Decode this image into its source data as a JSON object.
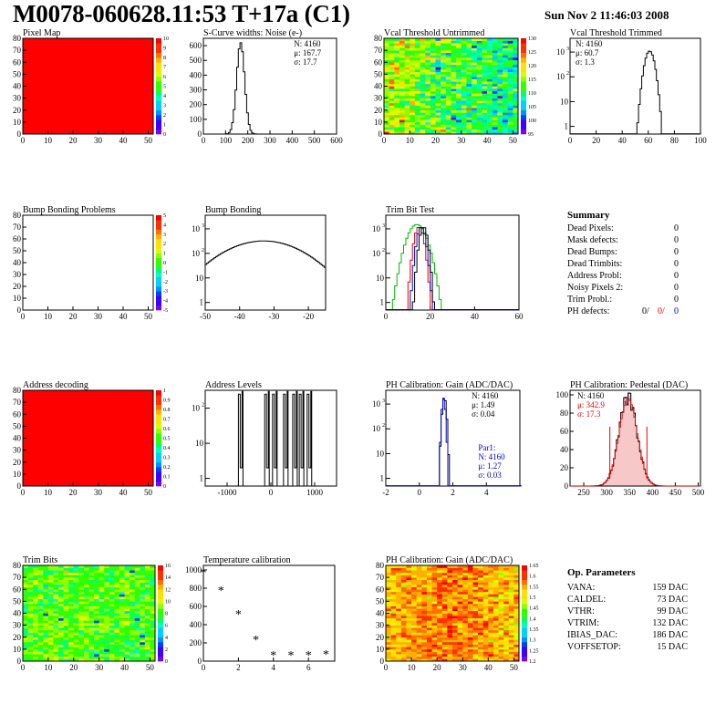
{
  "header": {
    "title": "M0078-060628.11:53 T+17a (C1)",
    "date": "Sun Nov  2 11:46:03 2008"
  },
  "colors": {
    "hist_line": "#000000",
    "blue": "#0000cc",
    "red": "#ee0000",
    "green": "#00bb00",
    "map_red": "#ff0000"
  },
  "chart_data": [
    {
      "id": "pixel-map",
      "type": "heatmap",
      "title": "Pixel Map",
      "fill": "uniform-red",
      "xlim": [
        0,
        52
      ],
      "ylim": [
        0,
        80
      ],
      "xticks": [
        "0",
        "10",
        "20",
        "30",
        "40",
        "50"
      ],
      "yticks": [
        "0",
        "10",
        "20",
        "30",
        "40",
        "50",
        "60",
        "70",
        "80"
      ],
      "zticks": [
        "0",
        "1",
        "2",
        "3",
        "4",
        "5",
        "6",
        "7",
        "8",
        "9",
        "10"
      ]
    },
    {
      "id": "scurve",
      "type": "histogram",
      "title": "S-Curve widths: Noise (e-)",
      "xlim": [
        0,
        600
      ],
      "ylim": [
        0,
        650
      ],
      "xticks": [
        "0",
        "100",
        "200",
        "300",
        "400",
        "500",
        "600"
      ],
      "yticks": [
        "0",
        "100",
        "200",
        "300",
        "400",
        "500",
        "600"
      ],
      "stats": {
        "N": "4160",
        "mean": "167.7",
        "sigma": "17.7"
      },
      "peak": {
        "mean": 168,
        "sigma": 18,
        "height": 620
      }
    },
    {
      "id": "vcal-untrimmed",
      "type": "heatmap",
      "title": "Vcal Threshold Untrimmed",
      "fill": "noisy-green-gradient",
      "xlim": [
        0,
        52
      ],
      "ylim": [
        0,
        80
      ],
      "xticks": [
        "0",
        "10",
        "20",
        "30",
        "40",
        "50"
      ],
      "yticks": [
        "0",
        "10",
        "20",
        "30",
        "40",
        "50",
        "60",
        "70",
        "80"
      ],
      "zticks": [
        "95",
        "100",
        "105",
        "110",
        "115",
        "120",
        "125",
        "130"
      ]
    },
    {
      "id": "vcal-trimmed",
      "type": "histogram",
      "title": "Vcal Threshold Trimmed",
      "log": true,
      "xlim": [
        0,
        100
      ],
      "xticks": [
        "0",
        "20",
        "40",
        "60",
        "80",
        "100"
      ],
      "yticks": [
        "1",
        "10",
        "10^2",
        "10^3"
      ],
      "stats": {
        "N": "4160",
        "mean": "60.7",
        "sigma": "1.3"
      },
      "peak": {
        "mean": 61,
        "sigma": 2.5,
        "height": 1100
      }
    },
    {
      "id": "bump-problems",
      "type": "heatmap",
      "title": "Bump Bonding Problems",
      "fill": "empty",
      "xlim": [
        0,
        52
      ],
      "ylim": [
        0,
        80
      ],
      "xticks": [
        "0",
        "10",
        "20",
        "30",
        "40",
        "50"
      ],
      "yticks": [
        "0",
        "10",
        "20",
        "30",
        "40",
        "50",
        "60",
        "70",
        "80"
      ],
      "zticks": [
        "-5",
        "-4",
        "-3",
        "-2",
        "-1",
        "0",
        "1",
        "2",
        "3",
        "4",
        "5"
      ]
    },
    {
      "id": "bump-bonding",
      "type": "histogram",
      "title": "Bump Bonding",
      "log": true,
      "xlim": [
        -50,
        -15
      ],
      "xticks": [
        "-50",
        "-40",
        "-30",
        "-20"
      ],
      "yticks": [
        "1",
        "10",
        "10^2",
        "10^3"
      ],
      "peak": {
        "mean": -33,
        "sigma": 8,
        "height": 320
      }
    },
    {
      "id": "trim-bit-test",
      "type": "histogram",
      "title": "Trim Bit Test",
      "log": true,
      "xlim": [
        0,
        60
      ],
      "xticks": [
        "0",
        "20",
        "40",
        "60"
      ],
      "yticks": [
        "1",
        "10",
        "10^2",
        "10^3"
      ],
      "series": [
        {
          "color": "green",
          "mean": 14,
          "sigma": 2.8,
          "height": 1500
        },
        {
          "color": "red",
          "mean": 15,
          "sigma": 1.4,
          "height": 1200
        },
        {
          "color": "blue",
          "mean": 16,
          "sigma": 1.3,
          "height": 1200
        },
        {
          "color": "black",
          "mean": 17,
          "sigma": 1.2,
          "height": 1200
        }
      ]
    },
    {
      "id": "address-decoding",
      "type": "heatmap",
      "title": "Address decoding",
      "fill": "uniform-red",
      "xlim": [
        0,
        52
      ],
      "ylim": [
        0,
        80
      ],
      "xticks": [
        "0",
        "10",
        "20",
        "30",
        "40",
        "50"
      ],
      "yticks": [
        "0",
        "10",
        "20",
        "30",
        "40",
        "50",
        "60",
        "70",
        "80"
      ],
      "zticks": [
        "0",
        "0.1",
        "0.2",
        "0.3",
        "0.4",
        "0.5",
        "0.6",
        "0.7",
        "0.8",
        "0.9",
        "1"
      ]
    },
    {
      "id": "address-levels",
      "type": "histogram",
      "title": "Address Levels",
      "log": true,
      "xlim": [
        -1500,
        1500
      ],
      "xticks": [
        "-1000",
        "0",
        "1000"
      ],
      "yticks": [
        "1",
        "10",
        "10^2"
      ],
      "spikes": [
        -700,
        -100,
        80,
        330,
        540,
        690,
        870
      ]
    },
    {
      "id": "ph-gain",
      "type": "histogram",
      "title": "PH Calibration: Gain (ADC/DAC)",
      "log": true,
      "xlim": [
        -2,
        6
      ],
      "xticks": [
        "-2",
        "0",
        "2",
        "4"
      ],
      "yticks": [
        "1",
        "10",
        "10^2",
        "10^3"
      ],
      "stats": {
        "N": "4160",
        "mean": "1.49",
        "sigma": "0.04"
      },
      "fit": {
        "label": "Par1:",
        "N": "4160",
        "mean": "1.27",
        "sigma": "0.03"
      },
      "peak": {
        "mean": 1.49,
        "sigma": 0.08,
        "height": 1800
      }
    },
    {
      "id": "ph-pedestal",
      "type": "histogram",
      "title": "PH Calibration: Pedestal (DAC)",
      "xlim": [
        220,
        505
      ],
      "ylim": [
        0,
        105
      ],
      "xticks": [
        "250",
        "300",
        "350",
        "400",
        "450",
        "500"
      ],
      "yticks": [
        "0",
        "20",
        "40",
        "60",
        "80",
        "100"
      ],
      "stats": {
        "N": "4160",
        "mean": "342.9",
        "sigma": "17.3"
      },
      "peak": {
        "mean": 347,
        "sigma": 20,
        "height": 96
      },
      "markers": [
        307,
        388
      ]
    },
    {
      "id": "trim-bits",
      "type": "heatmap",
      "title": "Trim Bits",
      "fill": "noisy-green",
      "xlim": [
        0,
        52
      ],
      "ylim": [
        0,
        80
      ],
      "xticks": [
        "0",
        "10",
        "20",
        "30",
        "40",
        "50"
      ],
      "yticks": [
        "0",
        "10",
        "20",
        "30",
        "40",
        "50",
        "60",
        "70",
        "80"
      ],
      "zticks": [
        "0",
        "2",
        "4",
        "6",
        "8",
        "10",
        "12",
        "14",
        "16"
      ]
    },
    {
      "id": "temperature",
      "type": "scatter",
      "title": "Temperature calibration",
      "xlim": [
        0,
        7.5
      ],
      "ylim": [
        0,
        1050
      ],
      "xticks": [
        "0",
        "2",
        "4",
        "6"
      ],
      "yticks": [
        "0",
        "200",
        "400",
        "600",
        "800",
        "1000"
      ],
      "points": [
        [
          0,
          975
        ],
        [
          1,
          780
        ],
        [
          2,
          520
        ],
        [
          3,
          240
        ],
        [
          4,
          70
        ],
        [
          5,
          70
        ],
        [
          6,
          70
        ],
        [
          7,
          80
        ]
      ]
    },
    {
      "id": "ph-gain-map",
      "type": "heatmap",
      "title": "PH Calibration: Gain (ADC/DAC)",
      "fill": "noisy-orange",
      "xlim": [
        0,
        52
      ],
      "ylim": [
        0,
        80
      ],
      "xticks": [
        "0",
        "10",
        "20",
        "30",
        "40",
        "50"
      ],
      "yticks": [
        "0",
        "10",
        "20",
        "30",
        "40",
        "50",
        "60",
        "70",
        "80"
      ],
      "zticks": [
        "1.2",
        "1.25",
        "1.3",
        "1.35",
        "1.4",
        "1.45",
        "1.5",
        "1.55",
        "1.6",
        "1.65"
      ]
    }
  ],
  "summary": {
    "heading": "Summary",
    "rows": [
      {
        "label": "Dead Pixels:",
        "value": "0"
      },
      {
        "label": "Mask defects:",
        "value": "0"
      },
      {
        "label": "Dead Bumps:",
        "value": "0"
      },
      {
        "label": "Dead Trimbits:",
        "value": "0"
      },
      {
        "label": "Address Probl:",
        "value": "0"
      },
      {
        "label": "Noisy Pixels 2:",
        "value": "0"
      },
      {
        "label": "Trim Probl.:",
        "value": "0"
      }
    ],
    "ph_defects": {
      "label": "PH defects:",
      "v1": "0/",
      "v2": "0/",
      "v3": "0"
    }
  },
  "op_params": {
    "heading": "Op. Parameters",
    "rows": [
      {
        "label": "VANA:",
        "value": "159 DAC"
      },
      {
        "label": "CALDEL:",
        "value": "73 DAC"
      },
      {
        "label": "VTHR:",
        "value": "99 DAC"
      },
      {
        "label": "VTRIM:",
        "value": "132 DAC"
      },
      {
        "label": "IBIAS_DAC:",
        "value": "186 DAC"
      },
      {
        "label": "VOFFSETOP:",
        "value": "15 DAC"
      }
    ]
  }
}
